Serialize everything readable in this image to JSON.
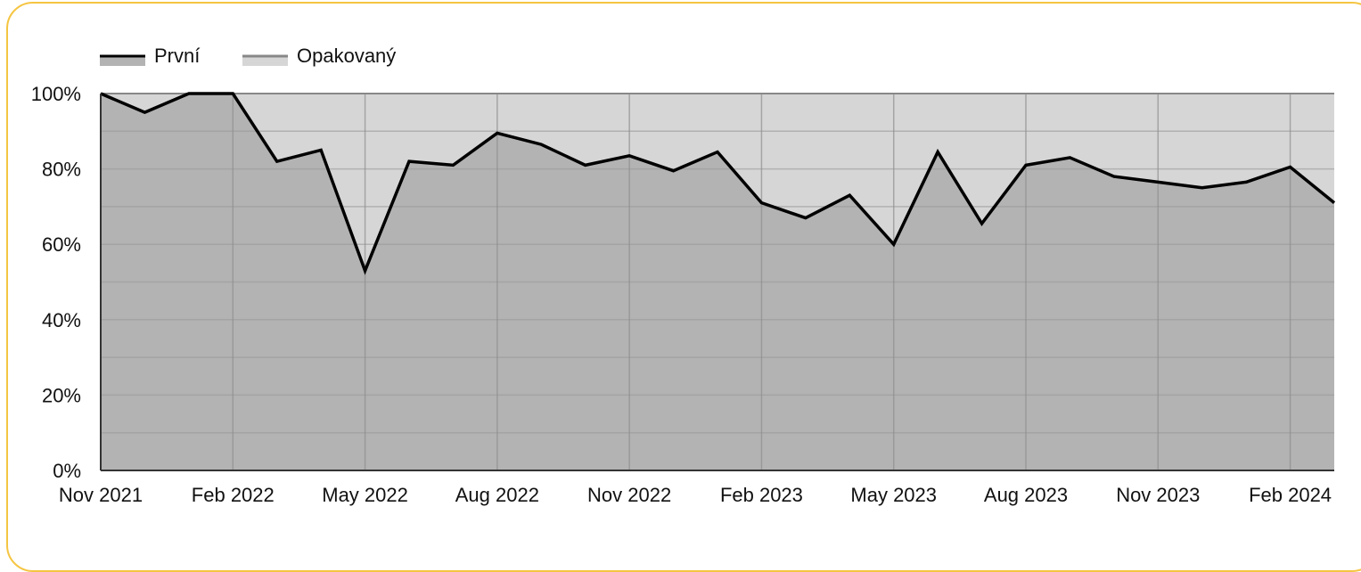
{
  "chart_data": {
    "type": "area",
    "stacked_percent": true,
    "legend": {
      "placement": "top-left",
      "entries": [
        {
          "name": "První",
          "line_color": "#000000",
          "fill_color": "#b3b3b3"
        },
        {
          "name": "Opakovaný",
          "line_color": "#888888",
          "fill_color": "#d6d6d6"
        }
      ]
    },
    "x_start": "2021-11",
    "x_end": "2024-03",
    "x_ticks": [
      "Nov 2021",
      "Feb 2022",
      "May 2022",
      "Aug 2022",
      "Nov 2022",
      "Feb 2023",
      "May 2023",
      "Aug 2023",
      "Nov 2023",
      "Feb 2024"
    ],
    "y_ticks": [
      "0%",
      "20%",
      "40%",
      "60%",
      "80%",
      "100%"
    ],
    "ylim": [
      0,
      100
    ],
    "grid": true,
    "x": [
      "2021-11",
      "2021-12",
      "2022-01",
      "2022-02",
      "2022-03",
      "2022-04",
      "2022-05",
      "2022-06",
      "2022-07",
      "2022-08",
      "2022-09",
      "2022-10",
      "2022-11",
      "2022-12",
      "2023-01",
      "2023-02",
      "2023-03",
      "2023-04",
      "2023-05",
      "2023-06",
      "2023-07",
      "2023-08",
      "2023-09",
      "2023-10",
      "2023-11",
      "2023-12",
      "2024-01",
      "2024-02",
      "2024-03"
    ],
    "series": [
      {
        "name": "První",
        "values": [
          100,
          95,
          100,
          100,
          82,
          85,
          53,
          82,
          81,
          89.5,
          86.5,
          81,
          83.5,
          79.5,
          84.5,
          71,
          67,
          73,
          60,
          84.5,
          65.5,
          81,
          83,
          78,
          76.5,
          75,
          76.5,
          80.5,
          71
        ]
      },
      {
        "name": "Opakovaný",
        "values": [
          0,
          5,
          0,
          0,
          18,
          15,
          47,
          18,
          19,
          10.5,
          13.5,
          19,
          16.5,
          20.5,
          15.5,
          29,
          33,
          27,
          40,
          15.5,
          34.5,
          19,
          17,
          22,
          23.5,
          25,
          23.5,
          19.5,
          29
        ]
      }
    ]
  }
}
